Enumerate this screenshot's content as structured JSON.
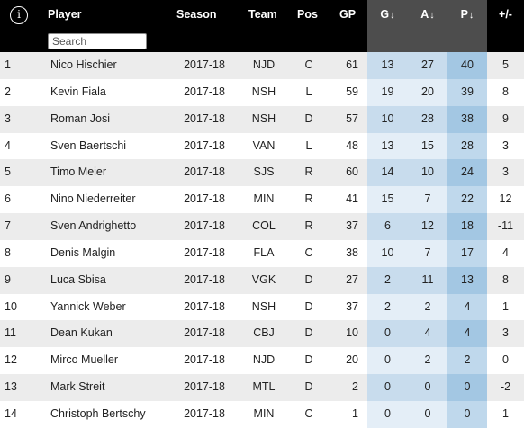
{
  "header": {
    "info_symbol": "i",
    "search_placeholder": "Search",
    "columns": {
      "player": "Player",
      "season": "Season",
      "team": "Team",
      "pos": "Pos",
      "gp": "GP",
      "g": "G",
      "a": "A",
      "p": "P",
      "pm": "+/-"
    },
    "sort_arrow": "↓"
  },
  "rows": [
    {
      "rank": "1",
      "player": "Nico Hischier",
      "season": "2017-18",
      "team": "NJD",
      "pos": "C",
      "gp": "61",
      "g": "13",
      "a": "27",
      "p": "40",
      "pm": "5"
    },
    {
      "rank": "2",
      "player": "Kevin Fiala",
      "season": "2017-18",
      "team": "NSH",
      "pos": "L",
      "gp": "59",
      "g": "19",
      "a": "20",
      "p": "39",
      "pm": "8"
    },
    {
      "rank": "3",
      "player": "Roman Josi",
      "season": "2017-18",
      "team": "NSH",
      "pos": "D",
      "gp": "57",
      "g": "10",
      "a": "28",
      "p": "38",
      "pm": "9"
    },
    {
      "rank": "4",
      "player": "Sven Baertschi",
      "season": "2017-18",
      "team": "VAN",
      "pos": "L",
      "gp": "48",
      "g": "13",
      "a": "15",
      "p": "28",
      "pm": "3"
    },
    {
      "rank": "5",
      "player": "Timo Meier",
      "season": "2017-18",
      "team": "SJS",
      "pos": "R",
      "gp": "60",
      "g": "14",
      "a": "10",
      "p": "24",
      "pm": "3"
    },
    {
      "rank": "6",
      "player": "Nino Niederreiter",
      "season": "2017-18",
      "team": "MIN",
      "pos": "R",
      "gp": "41",
      "g": "15",
      "a": "7",
      "p": "22",
      "pm": "12"
    },
    {
      "rank": "7",
      "player": "Sven Andrighetto",
      "season": "2017-18",
      "team": "COL",
      "pos": "R",
      "gp": "37",
      "g": "6",
      "a": "12",
      "p": "18",
      "pm": "-11"
    },
    {
      "rank": "8",
      "player": "Denis Malgin",
      "season": "2017-18",
      "team": "FLA",
      "pos": "C",
      "gp": "38",
      "g": "10",
      "a": "7",
      "p": "17",
      "pm": "4"
    },
    {
      "rank": "9",
      "player": "Luca Sbisa",
      "season": "2017-18",
      "team": "VGK",
      "pos": "D",
      "gp": "27",
      "g": "2",
      "a": "11",
      "p": "13",
      "pm": "8"
    },
    {
      "rank": "10",
      "player": "Yannick Weber",
      "season": "2017-18",
      "team": "NSH",
      "pos": "D",
      "gp": "37",
      "g": "2",
      "a": "2",
      "p": "4",
      "pm": "1"
    },
    {
      "rank": "11",
      "player": "Dean Kukan",
      "season": "2017-18",
      "team": "CBJ",
      "pos": "D",
      "gp": "10",
      "g": "0",
      "a": "4",
      "p": "4",
      "pm": "3"
    },
    {
      "rank": "12",
      "player": "Mirco Mueller",
      "season": "2017-18",
      "team": "NJD",
      "pos": "D",
      "gp": "20",
      "g": "0",
      "a": "2",
      "p": "2",
      "pm": "0"
    },
    {
      "rank": "13",
      "player": "Mark Streit",
      "season": "2017-18",
      "team": "MTL",
      "pos": "D",
      "gp": "2",
      "g": "0",
      "a": "0",
      "p": "0",
      "pm": "-2"
    },
    {
      "rank": "14",
      "player": "Christoph Bertschy",
      "season": "2017-18",
      "team": "MIN",
      "pos": "C",
      "gp": "1",
      "g": "0",
      "a": "0",
      "p": "0",
      "pm": "1"
    }
  ]
}
